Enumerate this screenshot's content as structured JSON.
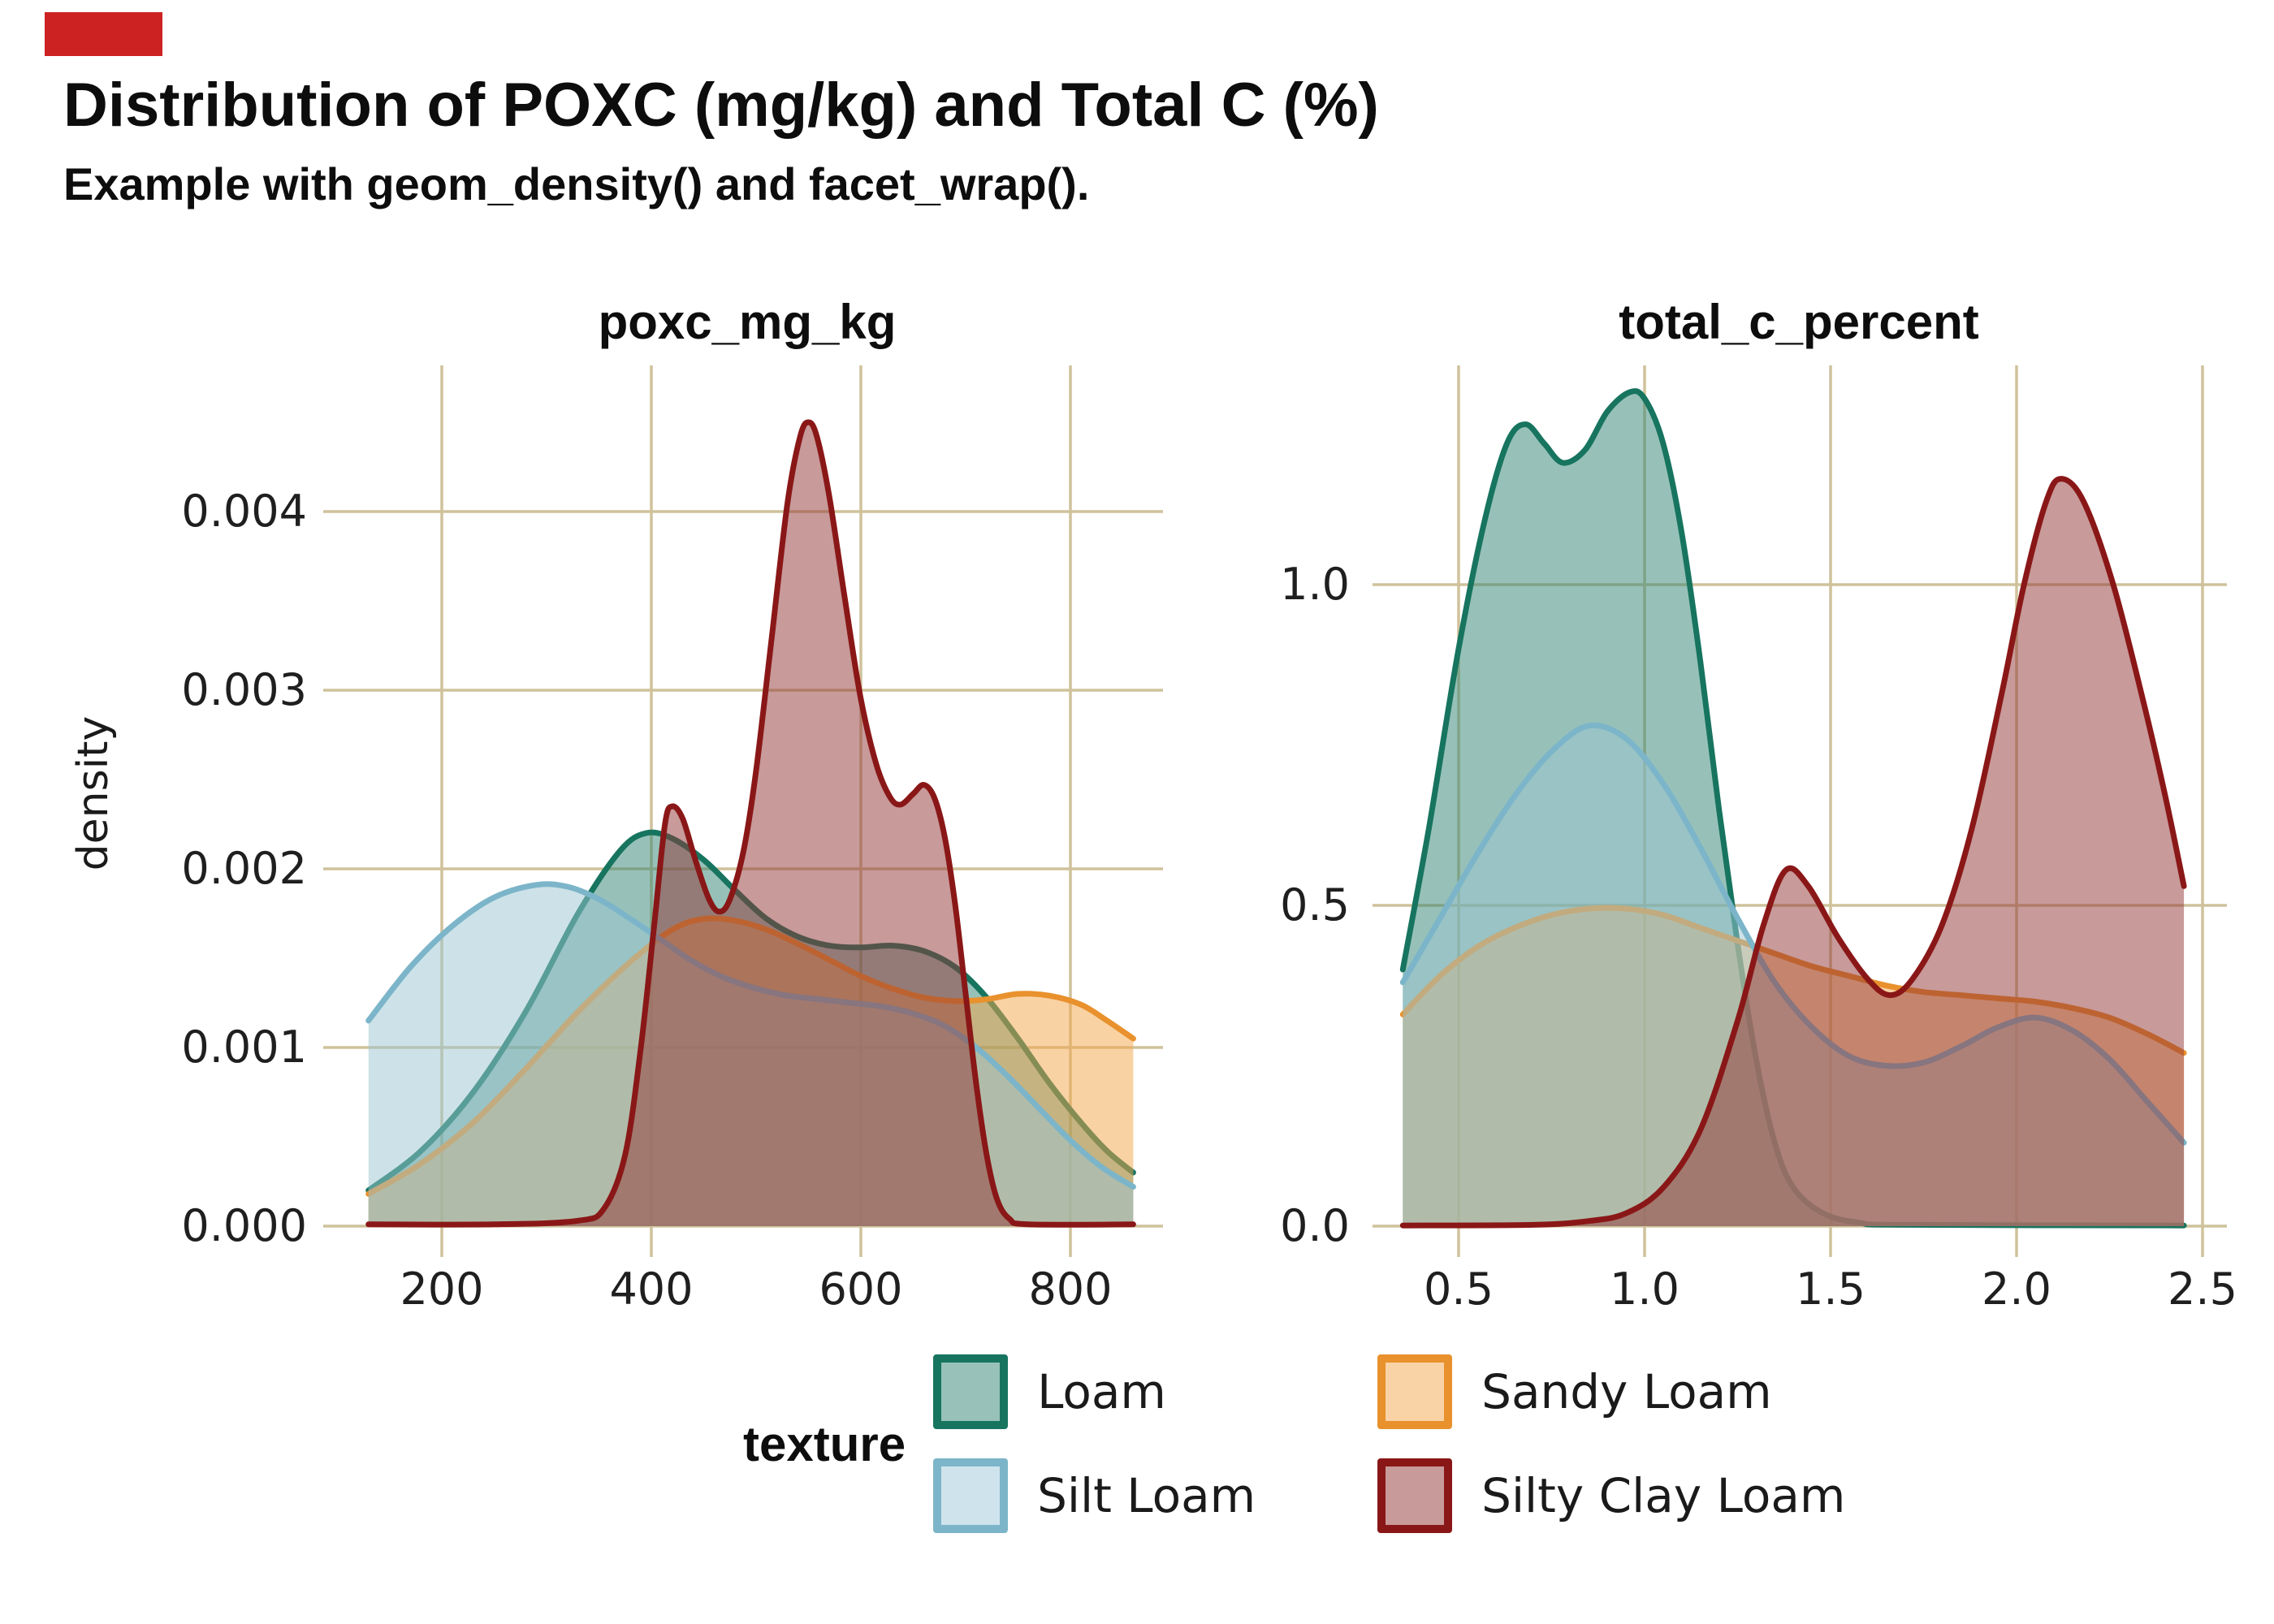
{
  "marker": {
    "color": "#cc2222"
  },
  "header": {
    "title": "Distribution of POXC (mg/kg) and Total C (%)",
    "subtitle": "Example with geom_density() and facet_wrap()."
  },
  "colors": {
    "background": "#ffffff",
    "gridline": "#cfc29b",
    "text": "#1a1a1a",
    "loam_stroke": "#17745f",
    "loam_fill": "#2f8371",
    "sandy_loam_stroke": "#e8912d",
    "sandy_loam_fill": "#f3a64a",
    "silt_loam_stroke": "#7cb5c9",
    "silt_loam_fill": "#9bc5d1",
    "silty_clay_loam_stroke": "#8a1717",
    "silty_clay_loam_fill": "#913535",
    "fill_opacity": 0.5
  },
  "legend": {
    "title": "texture",
    "items": [
      {
        "label": "Loam",
        "key_fill": "#98c2b9",
        "key_border": "#17745f"
      },
      {
        "label": "Sandy Loam",
        "key_fill": "#f9d3a5",
        "key_border": "#e8912d"
      },
      {
        "label": "Silt Loam",
        "key_fill": "#cfe3ec",
        "key_border": "#7cb5c9"
      },
      {
        "label": "Silty Clay Loam",
        "key_fill": "#c89a9a",
        "key_border": "#8a1717"
      }
    ]
  },
  "chart_data": [
    {
      "type": "area",
      "facet_label": "poxc_mg_kg",
      "ylabel": "density",
      "xlim": [
        130,
        860
      ],
      "ylim": [
        0,
        0.0048
      ],
      "grid": true,
      "legend_position": "bottom",
      "x_ticks": [
        {
          "label": "200",
          "value": 200
        },
        {
          "label": "400",
          "value": 400
        },
        {
          "label": "600",
          "value": 600
        },
        {
          "label": "800",
          "value": 800
        }
      ],
      "y_ticks": [
        {
          "label": "0.000",
          "value": 0.0
        },
        {
          "label": "0.001",
          "value": 0.001
        },
        {
          "label": "0.002",
          "value": 0.002
        },
        {
          "label": "0.003",
          "value": 0.003
        },
        {
          "label": "0.004",
          "value": 0.004
        }
      ],
      "series": [
        {
          "name": "Loam",
          "points": [
            [
              130,
              0.0002
            ],
            [
              180,
              0.00042
            ],
            [
              230,
              0.00075
            ],
            [
              280,
              0.0012
            ],
            [
              330,
              0.00175
            ],
            [
              370,
              0.0021
            ],
            [
              395,
              0.0022
            ],
            [
              420,
              0.00217
            ],
            [
              450,
              0.00205
            ],
            [
              480,
              0.00188
            ],
            [
              510,
              0.00172
            ],
            [
              540,
              0.00162
            ],
            [
              570,
              0.00157
            ],
            [
              600,
              0.00156
            ],
            [
              630,
              0.00157
            ],
            [
              660,
              0.00154
            ],
            [
              690,
              0.00145
            ],
            [
              720,
              0.00128
            ],
            [
              750,
              0.00105
            ],
            [
              780,
              0.0008
            ],
            [
              810,
              0.00058
            ],
            [
              835,
              0.00042
            ],
            [
              860,
              0.0003
            ]
          ]
        },
        {
          "name": "Sandy Loam",
          "points": [
            [
              130,
              0.00018
            ],
            [
              180,
              0.00035
            ],
            [
              230,
              0.00058
            ],
            [
              280,
              0.00088
            ],
            [
              330,
              0.0012
            ],
            [
              380,
              0.00148
            ],
            [
              420,
              0.00166
            ],
            [
              450,
              0.00172
            ],
            [
              480,
              0.00171
            ],
            [
              510,
              0.00166
            ],
            [
              540,
              0.00158
            ],
            [
              570,
              0.00149
            ],
            [
              600,
              0.0014
            ],
            [
              630,
              0.00133
            ],
            [
              660,
              0.00128
            ],
            [
              690,
              0.00126
            ],
            [
              720,
              0.00127
            ],
            [
              750,
              0.0013
            ],
            [
              780,
              0.00129
            ],
            [
              810,
              0.00124
            ],
            [
              835,
              0.00115
            ],
            [
              860,
              0.00105
            ]
          ]
        },
        {
          "name": "Silt Loam",
          "points": [
            [
              130,
              0.00115
            ],
            [
              170,
              0.00145
            ],
            [
              210,
              0.00168
            ],
            [
              250,
              0.00184
            ],
            [
              290,
              0.00191
            ],
            [
              320,
              0.0019
            ],
            [
              350,
              0.00183
            ],
            [
              380,
              0.00172
            ],
            [
              410,
              0.0016
            ],
            [
              440,
              0.00148
            ],
            [
              470,
              0.00139
            ],
            [
              500,
              0.00133
            ],
            [
              530,
              0.00129
            ],
            [
              560,
              0.00127
            ],
            [
              590,
              0.00125
            ],
            [
              620,
              0.00123
            ],
            [
              650,
              0.00119
            ],
            [
              680,
              0.00112
            ],
            [
              710,
              0.001
            ],
            [
              740,
              0.00084
            ],
            [
              770,
              0.00066
            ],
            [
              800,
              0.00048
            ],
            [
              830,
              0.00033
            ],
            [
              860,
              0.00022
            ]
          ]
        },
        {
          "name": "Silty Clay Loam",
          "points": [
            [
              130,
              1e-05
            ],
            [
              250,
              1e-05
            ],
            [
              330,
              3e-05
            ],
            [
              355,
              0.0001
            ],
            [
              375,
              0.0004
            ],
            [
              390,
              0.001
            ],
            [
              403,
              0.0017
            ],
            [
              413,
              0.00225
            ],
            [
              420,
              0.00235
            ],
            [
              430,
              0.00228
            ],
            [
              442,
              0.00205
            ],
            [
              455,
              0.00183
            ],
            [
              465,
              0.00176
            ],
            [
              475,
              0.00183
            ],
            [
              488,
              0.0021
            ],
            [
              500,
              0.00255
            ],
            [
              515,
              0.0033
            ],
            [
              530,
              0.00405
            ],
            [
              542,
              0.00442
            ],
            [
              550,
              0.0045
            ],
            [
              558,
              0.00442
            ],
            [
              570,
              0.00408
            ],
            [
              585,
              0.0035
            ],
            [
              600,
              0.00295
            ],
            [
              615,
              0.00258
            ],
            [
              628,
              0.0024
            ],
            [
              638,
              0.00236
            ],
            [
              650,
              0.00242
            ],
            [
              660,
              0.00247
            ],
            [
              670,
              0.0024
            ],
            [
              680,
              0.00218
            ],
            [
              690,
              0.0018
            ],
            [
              700,
              0.0013
            ],
            [
              710,
              0.0008
            ],
            [
              720,
              0.0004
            ],
            [
              730,
              0.00015
            ],
            [
              742,
              4e-05
            ],
            [
              760,
              1e-05
            ],
            [
              860,
              1e-05
            ]
          ]
        }
      ]
    },
    {
      "type": "area",
      "facet_label": "total_c_percent",
      "ylabel": "density",
      "xlim": [
        0.35,
        2.45
      ],
      "ylim": [
        0,
        1.34
      ],
      "grid": true,
      "legend_position": "bottom",
      "x_ticks": [
        {
          "label": "0.5",
          "value": 0.5
        },
        {
          "label": "1.0",
          "value": 1.0
        },
        {
          "label": "1.5",
          "value": 1.5
        },
        {
          "label": "2.0",
          "value": 2.0
        },
        {
          "label": "2.5",
          "value": 2.5
        }
      ],
      "y_ticks": [
        {
          "label": "0.0",
          "value": 0.0
        },
        {
          "label": "0.5",
          "value": 0.5
        },
        {
          "label": "1.0",
          "value": 1.0
        }
      ],
      "series": [
        {
          "name": "Loam",
          "points": [
            [
              0.35,
              0.4
            ],
            [
              0.42,
              0.62
            ],
            [
              0.5,
              0.9
            ],
            [
              0.57,
              1.1
            ],
            [
              0.63,
              1.22
            ],
            [
              0.68,
              1.25
            ],
            [
              0.73,
              1.22
            ],
            [
              0.78,
              1.19
            ],
            [
              0.84,
              1.21
            ],
            [
              0.9,
              1.27
            ],
            [
              0.96,
              1.3
            ],
            [
              1.0,
              1.29
            ],
            [
              1.05,
              1.22
            ],
            [
              1.1,
              1.08
            ],
            [
              1.15,
              0.88
            ],
            [
              1.2,
              0.65
            ],
            [
              1.25,
              0.44
            ],
            [
              1.3,
              0.26
            ],
            [
              1.35,
              0.13
            ],
            [
              1.4,
              0.06
            ],
            [
              1.48,
              0.02
            ],
            [
              1.58,
              0.005
            ],
            [
              1.7,
              0.002
            ],
            [
              2.45,
              0.001
            ]
          ]
        },
        {
          "name": "Sandy Loam",
          "points": [
            [
              0.35,
              0.33
            ],
            [
              0.45,
              0.39
            ],
            [
              0.55,
              0.435
            ],
            [
              0.65,
              0.465
            ],
            [
              0.75,
              0.485
            ],
            [
              0.85,
              0.495
            ],
            [
              0.95,
              0.495
            ],
            [
              1.05,
              0.485
            ],
            [
              1.15,
              0.465
            ],
            [
              1.25,
              0.445
            ],
            [
              1.35,
              0.425
            ],
            [
              1.45,
              0.405
            ],
            [
              1.55,
              0.39
            ],
            [
              1.65,
              0.375
            ],
            [
              1.75,
              0.365
            ],
            [
              1.85,
              0.36
            ],
            [
              1.95,
              0.355
            ],
            [
              2.05,
              0.35
            ],
            [
              2.15,
              0.34
            ],
            [
              2.25,
              0.325
            ],
            [
              2.35,
              0.3
            ],
            [
              2.45,
              0.27
            ]
          ]
        },
        {
          "name": "Silt Loam",
          "points": [
            [
              0.35,
              0.38
            ],
            [
              0.45,
              0.48
            ],
            [
              0.55,
              0.58
            ],
            [
              0.65,
              0.67
            ],
            [
              0.75,
              0.74
            ],
            [
              0.85,
              0.78
            ],
            [
              0.95,
              0.76
            ],
            [
              1.05,
              0.69
            ],
            [
              1.15,
              0.59
            ],
            [
              1.25,
              0.48
            ],
            [
              1.35,
              0.38
            ],
            [
              1.45,
              0.31
            ],
            [
              1.55,
              0.265
            ],
            [
              1.65,
              0.25
            ],
            [
              1.75,
              0.255
            ],
            [
              1.85,
              0.28
            ],
            [
              1.95,
              0.31
            ],
            [
              2.05,
              0.325
            ],
            [
              2.15,
              0.305
            ],
            [
              2.25,
              0.26
            ],
            [
              2.35,
              0.195
            ],
            [
              2.45,
              0.13
            ]
          ]
        },
        {
          "name": "Silty Clay Loam",
          "points": [
            [
              0.35,
              0.001
            ],
            [
              0.7,
              0.002
            ],
            [
              0.85,
              0.008
            ],
            [
              0.95,
              0.02
            ],
            [
              1.05,
              0.06
            ],
            [
              1.15,
              0.15
            ],
            [
              1.25,
              0.32
            ],
            [
              1.32,
              0.47
            ],
            [
              1.38,
              0.555
            ],
            [
              1.44,
              0.53
            ],
            [
              1.52,
              0.45
            ],
            [
              1.6,
              0.385
            ],
            [
              1.66,
              0.36
            ],
            [
              1.72,
              0.385
            ],
            [
              1.8,
              0.47
            ],
            [
              1.88,
              0.62
            ],
            [
              1.96,
              0.83
            ],
            [
              2.02,
              1.0
            ],
            [
              2.08,
              1.13
            ],
            [
              2.12,
              1.165
            ],
            [
              2.18,
              1.13
            ],
            [
              2.26,
              1.0
            ],
            [
              2.34,
              0.82
            ],
            [
              2.4,
              0.67
            ],
            [
              2.45,
              0.53
            ]
          ]
        }
      ]
    }
  ]
}
